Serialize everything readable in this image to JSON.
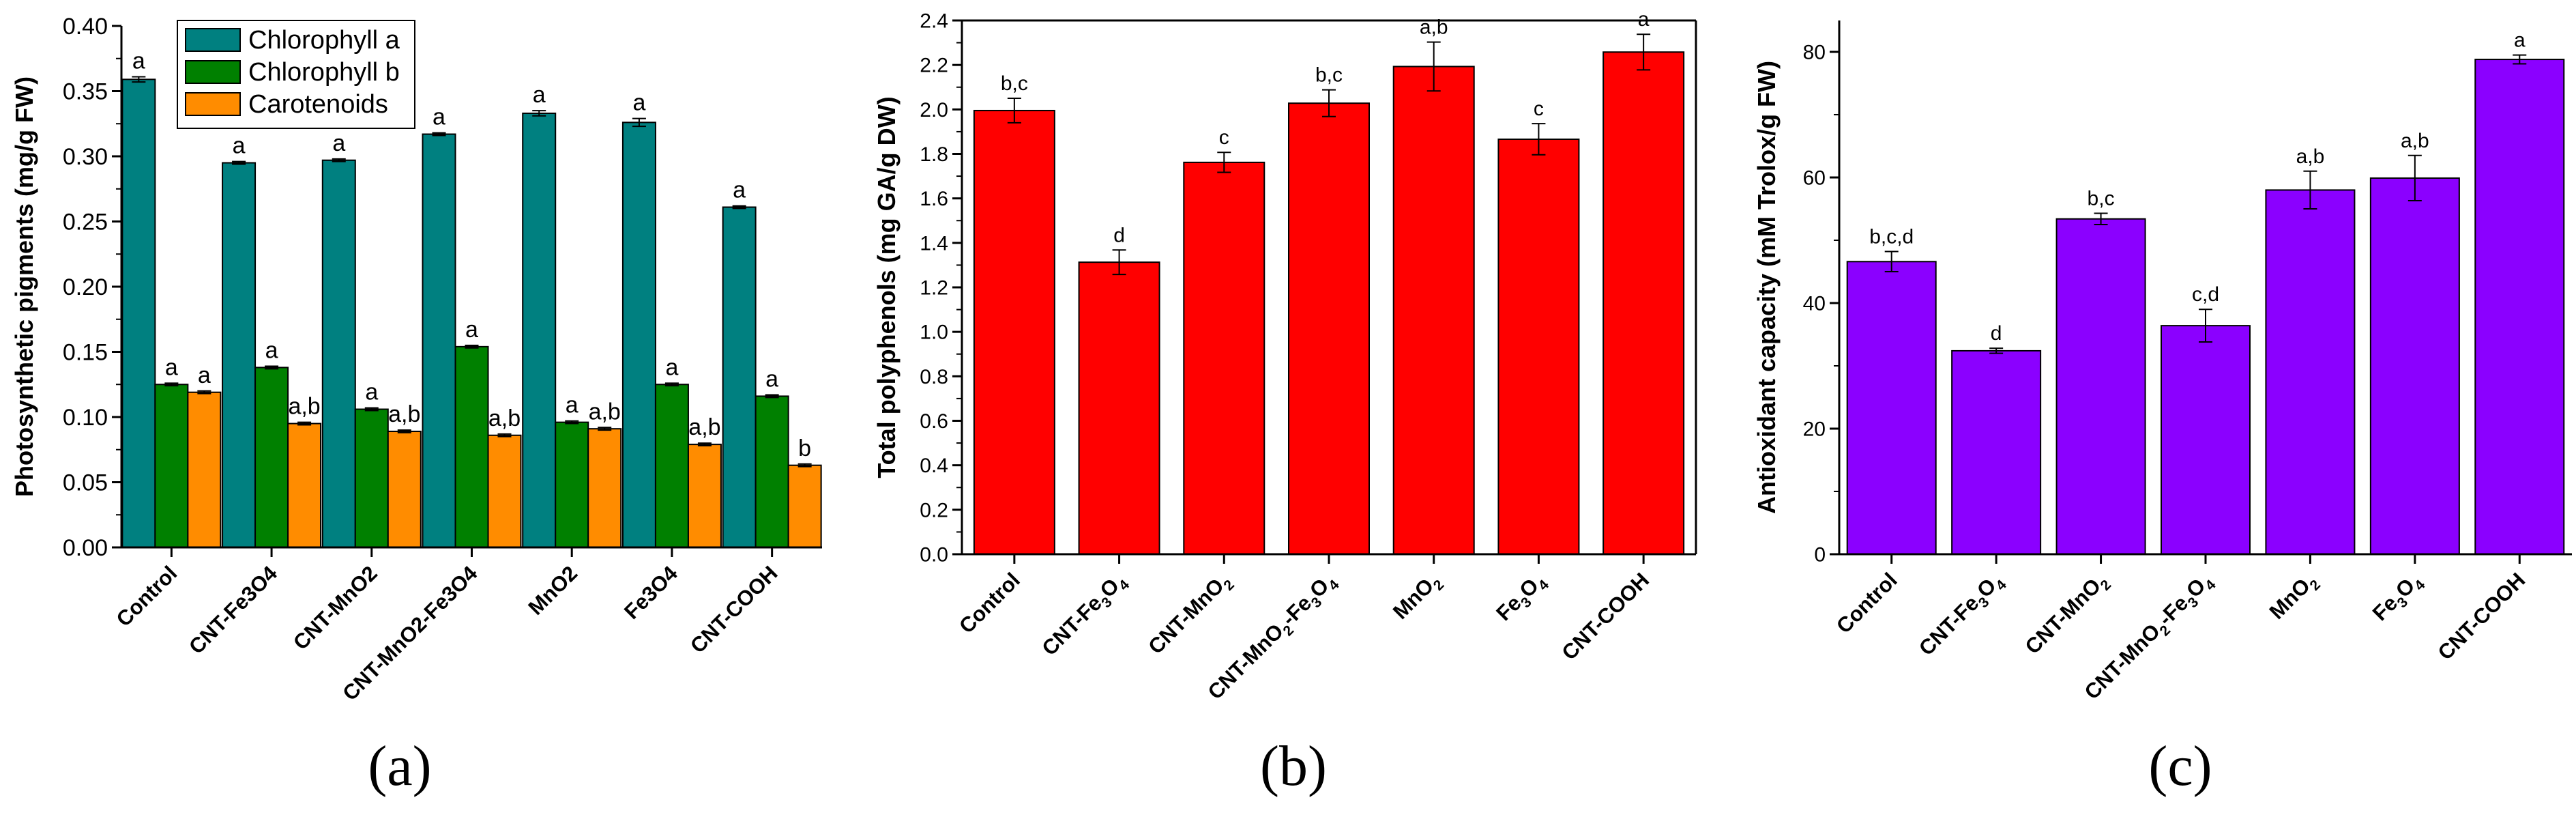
{
  "panel_labels": [
    "(a)",
    "(b)",
    "(c)"
  ],
  "colors": {
    "chlorophyll_a": "#008080",
    "chlorophyll_b": "#008000",
    "carotenoids": "#FF8C00",
    "polyphenols": "#FF0000",
    "antioxidant": "#8B00FF"
  },
  "chart_data": [
    {
      "type": "bar",
      "panel": "(a)",
      "ylabel": "Photosynthetic pigments (mg/g FW)",
      "ylim": [
        0,
        0.4
      ],
      "yticks": [
        "0.00",
        "0.05",
        "0.10",
        "0.15",
        "0.20",
        "0.25",
        "0.30",
        "0.35",
        "0.40"
      ],
      "categories": [
        "Control",
        "CNT-Fe3O4",
        "CNT-MnO2",
        "CNT-MnO2-Fe3O4",
        "MnO2",
        "Fe3O4",
        "CNT-COOH"
      ],
      "legend": [
        "Chlorophyll a",
        "Chlorophyll b",
        "Carotenoids"
      ],
      "legend_position": "top-left",
      "series": [
        {
          "name": "Chlorophyll a",
          "color": "#008080",
          "values": [
            0.359,
            0.295,
            0.297,
            0.317,
            0.333,
            0.326,
            0.261
          ],
          "errors": [
            0.002,
            0.001,
            0.001,
            0.001,
            0.002,
            0.003,
            0.001
          ],
          "letters": [
            "a",
            "a",
            "a",
            "a",
            "a",
            "a",
            "a"
          ]
        },
        {
          "name": "Chlorophyll b",
          "color": "#008000",
          "values": [
            0.125,
            0.138,
            0.106,
            0.154,
            0.096,
            0.125,
            0.116
          ],
          "errors": [
            0.001,
            0.001,
            0.001,
            0.001,
            0.001,
            0.001,
            0.001
          ],
          "letters": [
            "a",
            "a",
            "a",
            "a",
            "a",
            "a",
            "a"
          ]
        },
        {
          "name": "Carotenoids",
          "color": "#FF8C00",
          "values": [
            0.119,
            0.095,
            0.089,
            0.086,
            0.091,
            0.079,
            0.063
          ],
          "errors": [
            0.001,
            0.001,
            0.001,
            0.001,
            0.001,
            0.001,
            0.001
          ],
          "letters": [
            "a",
            "a,b",
            "a,b",
            "a,b",
            "a,b",
            "a,b",
            "b"
          ]
        }
      ]
    },
    {
      "type": "bar",
      "panel": "(b)",
      "ylabel": "Total polyphenols (mg GA/g DW)",
      "ylim": [
        0,
        2.4
      ],
      "yticks": [
        "0.0",
        "0.2",
        "0.4",
        "0.6",
        "0.8",
        "1.0",
        "1.2",
        "1.4",
        "1.6",
        "1.8",
        "2.0",
        "2.2",
        "2.4"
      ],
      "categories": [
        "Control",
        "CNT-Fe3O4",
        "CNT-MnO2",
        "CNT-MnO2-Fe3O4",
        "MnO2",
        "Fe3O4",
        "CNT-COOH"
      ],
      "series": [
        {
          "color": "#FF0000",
          "values": [
            1.995,
            1.313,
            1.762,
            2.028,
            2.193,
            1.866,
            2.258
          ],
          "errors": [
            0.055,
            0.055,
            0.045,
            0.06,
            0.11,
            0.07,
            0.08
          ],
          "letters": [
            "b,c",
            "d",
            "c",
            "b,c",
            "a,b",
            "c",
            "a"
          ]
        }
      ]
    },
    {
      "type": "bar",
      "panel": "(c)",
      "ylabel": "Antioxidant capacity (mM Trolox/g FW)",
      "ylim": [
        0,
        85
      ],
      "yticks": [
        "0",
        "20",
        "40",
        "60",
        "80"
      ],
      "ytick_values": [
        0,
        20,
        40,
        60,
        80
      ],
      "categories": [
        "Control",
        "CNT-Fe3O4",
        "CNT-MnO2",
        "CNT-MnO2-Fe3O4",
        "MnO2",
        "Fe3O4",
        "CNT-COOH"
      ],
      "series": [
        {
          "color": "#8B00FF",
          "values": [
            46.6,
            32.4,
            53.4,
            36.4,
            58.0,
            59.9,
            78.8
          ],
          "errors": [
            1.6,
            0.4,
            0.9,
            2.6,
            3.0,
            3.6,
            0.7
          ],
          "letters": [
            "b,c,d",
            "d",
            "b,c",
            "c,d",
            "a,b",
            "a,b",
            "a"
          ]
        }
      ]
    }
  ]
}
